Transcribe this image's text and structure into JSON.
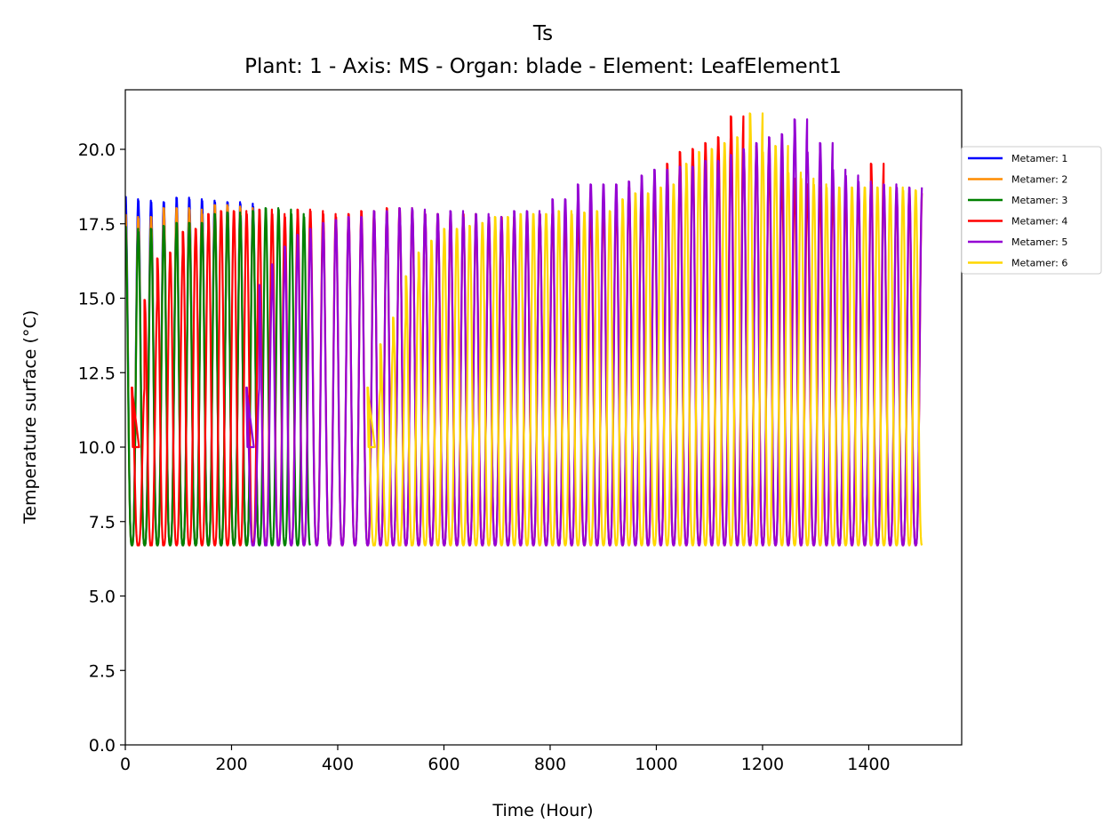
{
  "chart_data": {
    "type": "line",
    "title": "Ts",
    "subtitle": "Plant: 1 - Axis: MS - Organ: blade - Element: LeafElement1",
    "xlabel": "Time (Hour)",
    "ylabel": "Temperature surface (°C)",
    "xlim": [
      0,
      1575
    ],
    "ylim": [
      0.0,
      22.0
    ],
    "xticks": [
      "0",
      "200",
      "400",
      "600",
      "800",
      "1000",
      "1200",
      "1400"
    ],
    "yticks": [
      "0.0",
      "2.5",
      "5.0",
      "7.5",
      "10.0",
      "12.5",
      "15.0",
      "17.5",
      "20.0"
    ],
    "grid": false,
    "legend_position": "outside-right",
    "series": [
      {
        "name": "Metamer: 1",
        "color": "#0000ff",
        "t_start": 0,
        "t_end": 252,
        "peaks": [
          18.4,
          18.35,
          18.3,
          18.3,
          18.45,
          18.4,
          18.35,
          18.3,
          18.3,
          18.25,
          18.15
        ]
      },
      {
        "name": "Metamer: 2",
        "color": "#ff8c00",
        "t_start": 0,
        "t_end": 252,
        "peaks": [
          17.8,
          17.75,
          17.8,
          18.1,
          18.1,
          18.05,
          17.9,
          18.2,
          18.15,
          18.1,
          18.0
        ]
      },
      {
        "name": "Metamer: 3",
        "color": "#008000",
        "t_start": 0,
        "t_end": 348,
        "peaks": [
          17.4,
          17.3,
          17.4,
          17.5,
          17.6,
          17.6,
          17.6,
          17.9,
          17.95,
          17.85,
          18.0,
          18.1,
          18.05,
          17.9,
          17.8
        ]
      },
      {
        "name": "Metamer: 4",
        "color": "#ff0000",
        "t_start": 12,
        "t_end": 1500,
        "peaks": [
          12.0,
          15.0,
          16.4,
          16.6,
          17.3,
          17.4,
          17.9,
          18.0,
          18.0,
          17.9,
          18.05,
          17.9,
          17.8,
          18.05,
          18.0,
          17.9,
          17.8,
          17.9,
          18.0,
          18.0,
          18.1,
          18.1,
          18.0,
          17.9,
          17.9,
          17.9,
          17.9,
          17.7,
          17.8,
          17.8,
          17.8,
          17.9,
          17.9,
          17.9,
          17.9,
          17.9,
          18.3,
          18.4,
          18.6,
          18.8,
          18.9,
          18.9,
          19.6,
          20.0,
          20.1,
          20.3,
          20.5,
          21.2,
          20.0,
          20.2,
          19.3,
          19.1,
          18.9,
          18.8,
          18.8,
          18.8,
          18.8,
          18.8,
          19.6,
          18.7,
          18.6,
          18.6,
          18.6
        ]
      },
      {
        "name": "Metamer: 5",
        "color": "#9400d3",
        "t_start": 228,
        "t_end": 1500,
        "peaks": [
          12.0,
          15.5,
          16.2,
          16.8,
          17.2,
          17.4,
          17.6,
          17.7,
          17.8,
          17.8,
          18.0,
          18.0,
          18.1,
          18.05,
          17.9,
          17.9,
          18.0,
          17.8,
          17.9,
          17.8,
          17.7,
          18.0,
          18.0,
          17.9,
          18.4,
          18.4,
          18.9,
          18.9,
          18.9,
          18.9,
          19.0,
          19.2,
          19.4,
          19.4,
          19.5,
          19.5,
          19.7,
          19.7,
          19.9,
          20.1,
          20.3,
          20.5,
          20.6,
          21.1,
          20.0,
          20.3,
          19.4,
          19.2,
          19.0,
          18.9,
          18.9,
          18.8,
          18.8,
          18.8,
          18.8,
          18.7,
          18.7,
          18.7
        ]
      },
      {
        "name": "Metamer: 6",
        "color": "#ffd700",
        "t_start": 456,
        "t_end": 1500,
        "peaks": [
          12.0,
          13.5,
          14.4,
          15.8,
          16.6,
          17.0,
          17.4,
          17.4,
          17.5,
          17.6,
          17.8,
          17.8,
          17.9,
          17.9,
          17.9,
          18.0,
          17.9,
          17.95,
          18.0,
          18.0,
          18.4,
          18.6,
          18.6,
          18.8,
          18.9,
          19.6,
          20.0,
          20.1,
          20.3,
          20.5,
          21.3,
          20.0,
          20.2,
          19.3,
          19.1,
          18.9,
          18.8,
          18.8,
          18.8,
          18.8,
          18.8,
          18.8,
          18.7,
          18.7
        ]
      }
    ]
  }
}
